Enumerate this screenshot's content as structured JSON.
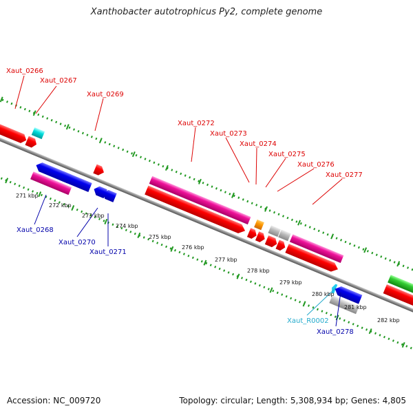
{
  "title": "Xanthobacter autotrophicus Py2, complete genome",
  "accession": "Accession: NC_009720",
  "topology": "Topology: circular; Length: 5,308,934 bp; Genes: 4,805",
  "colors": {
    "forward_label": "#dd0000",
    "reverse_label": "#0000aa",
    "rna_label": "#22aacc",
    "cds": "#ee0000",
    "cds_reverse": "#0000ee",
    "gene_pink": "#ee1199",
    "grey": "#bbbbbb",
    "orange": "#ff9900",
    "cyan": "#00dddd",
    "green": "#33cc33",
    "ticks": "#229922"
  },
  "scale_labels": [
    "271 kbp",
    "272 kbp",
    "273 kbp",
    "274 kbp",
    "275 kbp",
    "276 kbp",
    "277 kbp",
    "278 kbp",
    "279 kbp",
    "280 kbp",
    "281 kbp",
    "282 kbp"
  ],
  "forward_labels": [
    "Xaut_0266",
    "Xaut_0267",
    "Xaut_0269",
    "Xaut_0272",
    "Xaut_0273",
    "Xaut_0274",
    "Xaut_0275",
    "Xaut_0276",
    "Xaut_0277"
  ],
  "reverse_labels": [
    "Xaut_0268",
    "Xaut_0270",
    "Xaut_0271",
    "Xaut_R0002",
    "Xaut_0278"
  ]
}
